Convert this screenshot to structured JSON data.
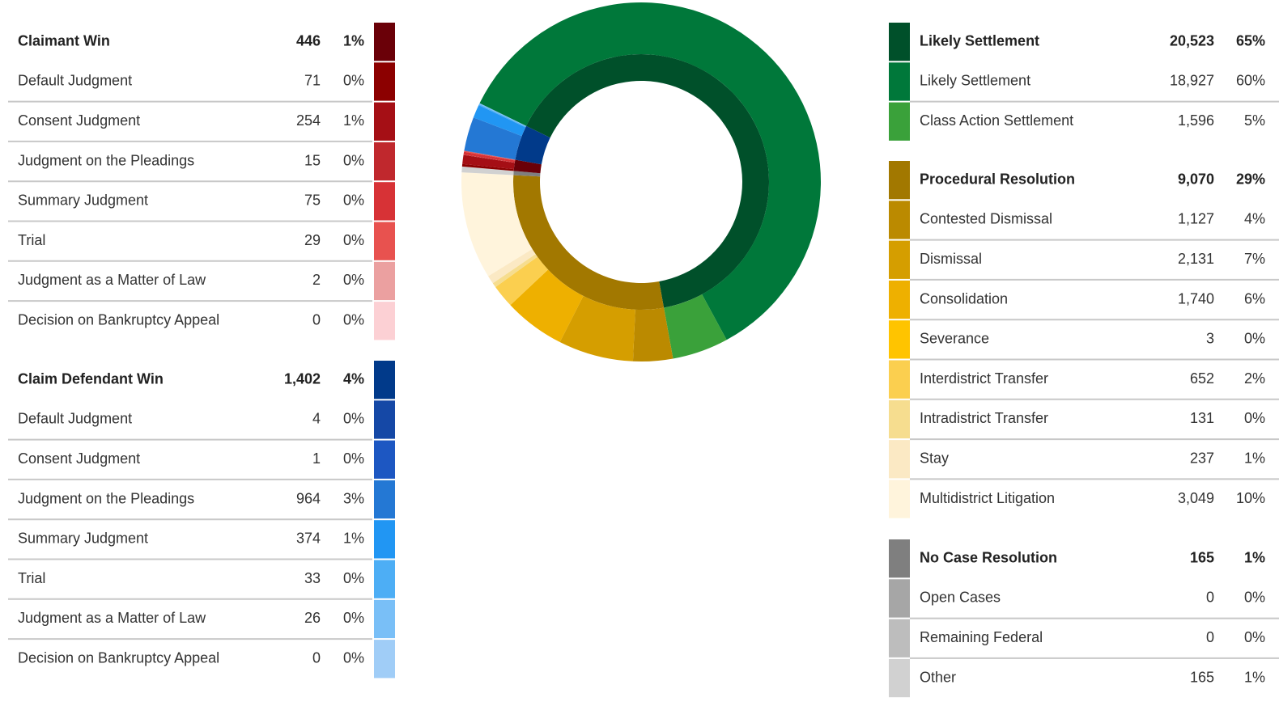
{
  "chart_data": {
    "type": "sunburst",
    "groups": [
      {
        "name": "Claimant Win",
        "value": 446,
        "value_label": "446",
        "percent": 1,
        "percent_label": "1%",
        "color": "#6a0008",
        "children": [
          {
            "name": "Default Judgment",
            "value": 71,
            "value_label": "71",
            "percent": 0,
            "percent_label": "0%",
            "color": "#8c0000"
          },
          {
            "name": "Consent Judgment",
            "value": 254,
            "value_label": "254",
            "percent": 1,
            "percent_label": "1%",
            "color": "#a50f15"
          },
          {
            "name": "Judgment on the Pleadings",
            "value": 15,
            "value_label": "15",
            "percent": 0,
            "percent_label": "0%",
            "color": "#c0282d"
          },
          {
            "name": "Summary Judgment",
            "value": 75,
            "value_label": "75",
            "percent": 0,
            "percent_label": "0%",
            "color": "#d73236"
          },
          {
            "name": "Trial",
            "value": 29,
            "value_label": "29",
            "percent": 0,
            "percent_label": "0%",
            "color": "#e8524f"
          },
          {
            "name": "Judgment as a Matter of Law",
            "value": 2,
            "value_label": "2",
            "percent": 0,
            "percent_label": "0%",
            "color": "#eba0a0"
          },
          {
            "name": "Decision on Bankruptcy Appeal",
            "value": 0,
            "value_label": "0",
            "percent": 0,
            "percent_label": "0%",
            "color": "#fcd0d4"
          }
        ]
      },
      {
        "name": "Claim Defendant Win",
        "value": 1402,
        "value_label": "1,402",
        "percent": 4,
        "percent_label": "4%",
        "color": "#013a8a",
        "children": [
          {
            "name": "Default Judgment",
            "value": 4,
            "value_label": "4",
            "percent": 0,
            "percent_label": "0%",
            "color": "#1548a6"
          },
          {
            "name": "Consent Judgment",
            "value": 1,
            "value_label": "1",
            "percent": 0,
            "percent_label": "0%",
            "color": "#1d57c2"
          },
          {
            "name": "Judgment on the Pleadings",
            "value": 964,
            "value_label": "964",
            "percent": 3,
            "percent_label": "3%",
            "color": "#2478d4"
          },
          {
            "name": "Summary Judgment",
            "value": 374,
            "value_label": "374",
            "percent": 1,
            "percent_label": "1%",
            "color": "#2196f3"
          },
          {
            "name": "Trial",
            "value": 33,
            "value_label": "33",
            "percent": 0,
            "percent_label": "0%",
            "color": "#4daef5"
          },
          {
            "name": "Judgment as a Matter of Law",
            "value": 26,
            "value_label": "26",
            "percent": 0,
            "percent_label": "0%",
            "color": "#79bff7"
          },
          {
            "name": "Decision on Bankruptcy Appeal",
            "value": 0,
            "value_label": "0",
            "percent": 0,
            "percent_label": "0%",
            "color": "#a0cdf7"
          }
        ]
      },
      {
        "name": "Likely Settlement",
        "value": 20523,
        "value_label": "20,523",
        "percent": 65,
        "percent_label": "65%",
        "color": "#00502a",
        "children": [
          {
            "name": "Likely Settlement",
            "value": 18927,
            "value_label": "18,927",
            "percent": 60,
            "percent_label": "60%",
            "color": "#00783a"
          },
          {
            "name": "Class Action Settlement",
            "value": 1596,
            "value_label": "1,596",
            "percent": 5,
            "percent_label": "5%",
            "color": "#3aa13a"
          }
        ]
      },
      {
        "name": "Procedural Resolution",
        "value": 9070,
        "value_label": "9,070",
        "percent": 29,
        "percent_label": "29%",
        "color": "#a27800",
        "children": [
          {
            "name": "Contested Dismissal",
            "value": 1127,
            "value_label": "1,127",
            "percent": 4,
            "percent_label": "4%",
            "color": "#bb8a00"
          },
          {
            "name": "Dismissal",
            "value": 2131,
            "value_label": "2,131",
            "percent": 7,
            "percent_label": "7%",
            "color": "#d59e00"
          },
          {
            "name": "Consolidation",
            "value": 1740,
            "value_label": "1,740",
            "percent": 6,
            "percent_label": "6%",
            "color": "#eeb000"
          },
          {
            "name": "Severance",
            "value": 3,
            "value_label": "3",
            "percent": 0,
            "percent_label": "0%",
            "color": "#ffc400"
          },
          {
            "name": "Interdistrict Transfer",
            "value": 652,
            "value_label": "652",
            "percent": 2,
            "percent_label": "2%",
            "color": "#fbcf4f"
          },
          {
            "name": "Intradistrict Transfer",
            "value": 131,
            "value_label": "131",
            "percent": 0,
            "percent_label": "0%",
            "color": "#f6dd8f"
          },
          {
            "name": "Stay",
            "value": 237,
            "value_label": "237",
            "percent": 1,
            "percent_label": "1%",
            "color": "#fbe9c4"
          },
          {
            "name": "Multidistrict Litigation",
            "value": 3049,
            "value_label": "3,049",
            "percent": 10,
            "percent_label": "10%",
            "color": "#fff4dc"
          }
        ]
      },
      {
        "name": "No Case Resolution",
        "value": 165,
        "value_label": "165",
        "percent": 1,
        "percent_label": "1%",
        "color": "#7f7f7f",
        "children": [
          {
            "name": "Open Cases",
            "value": 0,
            "value_label": "0",
            "percent": 0,
            "percent_label": "0%",
            "color": "#a6a6a6"
          },
          {
            "name": "Remaining Federal",
            "value": 0,
            "value_label": "0",
            "percent": 0,
            "percent_label": "0%",
            "color": "#bdbdbd"
          },
          {
            "name": "Other",
            "value": 165,
            "value_label": "165",
            "percent": 1,
            "percent_label": "1%",
            "color": "#d1d1d1"
          }
        ]
      }
    ]
  }
}
